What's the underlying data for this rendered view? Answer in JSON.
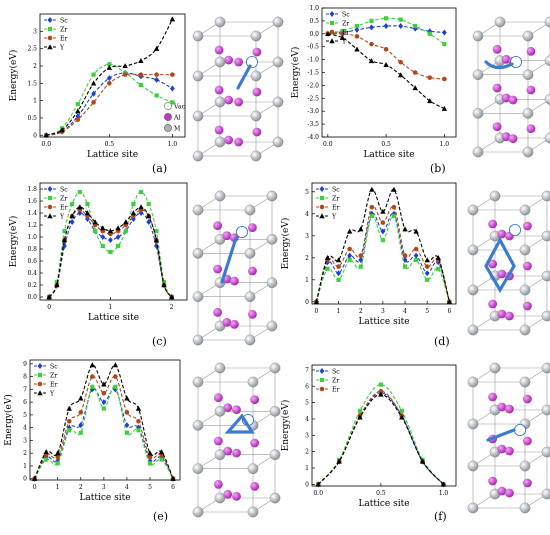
{
  "series_styles": [
    {
      "name": "Sc",
      "color": "#1f3fd8",
      "marker": "diamond"
    },
    {
      "name": "Zr",
      "color": "#3dcf3d",
      "marker": "square"
    },
    {
      "name": "Er",
      "color": "#b4471a",
      "marker": "circle"
    },
    {
      "name": "Y",
      "color": "#000000",
      "marker": "triangle"
    }
  ],
  "atom_legend": [
    {
      "label": "Vac",
      "color": "#ffffff"
    },
    {
      "label": "Al",
      "color": "#c33ac8"
    },
    {
      "label": "M",
      "color": "#aab1b8"
    }
  ],
  "chart_data": [
    {
      "panel": "(a)",
      "type": "line",
      "xlabel": "Lattice site",
      "ylabel": "Energy(eV)",
      "xlim": [
        -0.05,
        1.1
      ],
      "ylim": [
        -0.05,
        3.5
      ],
      "xticks": [
        0.0,
        0.5,
        1.0
      ],
      "xtick_labels": [
        "0.0",
        "0.5",
        "1.0"
      ],
      "yticks": [
        0,
        0.5,
        1,
        1.5,
        2,
        2.5,
        3
      ],
      "ytick_labels": [
        "0",
        "0.5",
        "1",
        "1.5",
        "2",
        "2.5",
        "3"
      ],
      "x": [
        0.0,
        0.125,
        0.25,
        0.375,
        0.5,
        0.625,
        0.75,
        0.875,
        1.0
      ],
      "series": [
        {
          "name": "Sc",
          "values": [
            0.0,
            0.1,
            0.55,
            1.2,
            1.65,
            1.8,
            1.7,
            1.6,
            1.35
          ]
        },
        {
          "name": "Zr",
          "values": [
            0.0,
            0.2,
            0.9,
            1.75,
            2.05,
            1.8,
            1.45,
            1.15,
            0.95
          ]
        },
        {
          "name": "Er",
          "values": [
            0.0,
            0.1,
            0.45,
            0.95,
            1.5,
            1.75,
            1.75,
            1.75,
            1.75
          ]
        },
        {
          "name": "Y",
          "values": [
            0.0,
            0.15,
            0.7,
            1.5,
            1.95,
            2.0,
            2.15,
            2.5,
            3.35
          ]
        }
      ]
    },
    {
      "panel": "(b)",
      "type": "line",
      "xlabel": "Lattice site",
      "ylabel": "Energy(eV)",
      "xlim": [
        -0.05,
        1.1
      ],
      "ylim": [
        -4.0,
        1.0
      ],
      "xticks": [
        0.0,
        0.5,
        1.0
      ],
      "xtick_labels": [
        "0.0",
        "0.5",
        "1.0"
      ],
      "yticks": [
        -4.0,
        -3.5,
        -3.0,
        -2.5,
        -2.0,
        -1.5,
        -1.0,
        -0.5,
        0.0,
        0.5,
        1.0
      ],
      "ytick_labels": [
        "-4.0",
        "-3.5",
        "-3.0",
        "-2.5",
        "-2.0",
        "-1.5",
        "-1.0",
        "-0.5",
        "0.0",
        "0.5",
        "1.0"
      ],
      "x": [
        0.0,
        0.125,
        0.25,
        0.375,
        0.5,
        0.625,
        0.75,
        0.875,
        1.0
      ],
      "series": [
        {
          "name": "Sc",
          "values": [
            0.0,
            0.05,
            0.15,
            0.25,
            0.3,
            0.3,
            0.2,
            0.1,
            0.05
          ]
        },
        {
          "name": "Zr",
          "values": [
            0.0,
            0.1,
            0.3,
            0.5,
            0.6,
            0.55,
            0.3,
            0.0,
            -0.4
          ]
        },
        {
          "name": "Er",
          "values": [
            0.0,
            0.0,
            -0.1,
            -0.4,
            -0.6,
            -1.1,
            -1.5,
            -1.7,
            -1.75
          ]
        },
        {
          "name": "Y",
          "values": [
            0.0,
            -0.15,
            -0.6,
            -1.05,
            -1.2,
            -1.6,
            -2.1,
            -2.6,
            -2.9
          ]
        }
      ]
    },
    {
      "panel": "(c)",
      "type": "line",
      "xlabel": "Lattice site",
      "ylabel": "Energy(eV)",
      "xlim": [
        -0.15,
        2.25
      ],
      "ylim": [
        -0.05,
        1.9
      ],
      "xticks": [
        0,
        1,
        2
      ],
      "xtick_labels": [
        "0",
        "1",
        "2"
      ],
      "yticks": [
        0.0,
        0.2,
        0.4,
        0.6,
        0.8,
        1.0,
        1.2,
        1.4,
        1.6,
        1.8
      ],
      "ytick_labels": [
        "0.0",
        "0.2",
        "0.4",
        "0.6",
        "0.8",
        "1.0",
        "1.2",
        "1.4",
        "1.6",
        "1.8"
      ],
      "x": [
        0.0,
        0.125,
        0.25,
        0.375,
        0.5,
        0.625,
        0.75,
        0.875,
        1.0,
        1.125,
        1.25,
        1.375,
        1.5,
        1.625,
        1.75,
        1.875,
        2.0
      ],
      "series": [
        {
          "name": "Sc",
          "values": [
            0.0,
            0.2,
            0.85,
            1.25,
            1.4,
            1.3,
            1.1,
            1.0,
            0.95,
            1.0,
            1.1,
            1.3,
            1.4,
            1.25,
            0.85,
            0.2,
            0.0
          ]
        },
        {
          "name": "Zr",
          "values": [
            0.0,
            0.25,
            1.1,
            1.55,
            1.75,
            1.55,
            1.1,
            0.85,
            0.75,
            0.85,
            1.1,
            1.55,
            1.75,
            1.55,
            1.1,
            0.25,
            0.0
          ]
        },
        {
          "name": "Er",
          "values": [
            0.0,
            0.2,
            0.95,
            1.35,
            1.45,
            1.35,
            1.2,
            1.1,
            1.05,
            1.1,
            1.2,
            1.35,
            1.45,
            1.35,
            0.95,
            0.2,
            0.0
          ]
        },
        {
          "name": "Y",
          "values": [
            0.0,
            0.2,
            0.95,
            1.35,
            1.5,
            1.4,
            1.25,
            1.15,
            1.1,
            1.15,
            1.25,
            1.4,
            1.5,
            1.35,
            0.95,
            0.2,
            0.0
          ]
        }
      ]
    },
    {
      "panel": "(d)",
      "type": "line",
      "xlabel": "Lattice site",
      "ylabel": "Energy(eV)",
      "xlim": [
        -0.2,
        6.3
      ],
      "ylim": [
        -0.1,
        5.4
      ],
      "xticks": [
        0,
        1,
        2,
        3,
        4,
        5,
        6
      ],
      "xtick_labels": [
        "0",
        "1",
        "2",
        "3",
        "4",
        "5",
        "6"
      ],
      "yticks": [
        0,
        1,
        2,
        3,
        4,
        5
      ],
      "ytick_labels": [
        "0",
        "1",
        "2",
        "3",
        "4",
        "5"
      ],
      "x": [
        0,
        0.5,
        1,
        1.5,
        2,
        2.5,
        3,
        3.5,
        4,
        4.5,
        5,
        5.5,
        6
      ],
      "series": [
        {
          "name": "Sc",
          "values": [
            0.0,
            1.8,
            1.3,
            2.1,
            1.9,
            4.0,
            3.2,
            4.0,
            1.9,
            2.1,
            1.3,
            1.8,
            0.0
          ]
        },
        {
          "name": "Zr",
          "values": [
            0.0,
            1.5,
            1.0,
            1.9,
            1.6,
            3.9,
            2.8,
            3.9,
            1.6,
            1.9,
            1.0,
            1.5,
            0.0
          ]
        },
        {
          "name": "Er",
          "values": [
            0.0,
            1.9,
            1.6,
            2.4,
            2.1,
            4.3,
            3.6,
            4.3,
            2.1,
            2.4,
            1.6,
            1.9,
            0.0
          ]
        },
        {
          "name": "Y",
          "values": [
            0.0,
            2.0,
            1.9,
            3.2,
            3.3,
            5.1,
            4.1,
            5.1,
            3.3,
            3.2,
            1.9,
            2.0,
            0.0
          ]
        }
      ]
    },
    {
      "panel": "(e)",
      "type": "line",
      "xlabel": "Lattice site",
      "ylabel": "Energy(eV)",
      "xlim": [
        -0.2,
        6.3
      ],
      "ylim": [
        -0.1,
        9.3
      ],
      "xticks": [
        0,
        1,
        2,
        3,
        4,
        5,
        6
      ],
      "xtick_labels": [
        "0",
        "1",
        "2",
        "3",
        "4",
        "5",
        "6"
      ],
      "yticks": [
        0,
        1,
        2,
        3,
        4,
        5,
        6,
        7,
        8,
        9
      ],
      "ytick_labels": [
        "0",
        "1",
        "2",
        "3",
        "4",
        "5",
        "6",
        "7",
        "8",
        "9"
      ],
      "x": [
        0,
        0.5,
        1,
        1.5,
        2,
        2.5,
        3,
        3.5,
        4,
        4.5,
        5,
        5.5,
        6
      ],
      "series": [
        {
          "name": "Sc",
          "values": [
            0.0,
            1.7,
            1.4,
            4.0,
            4.2,
            7.0,
            6.0,
            7.0,
            4.2,
            4.0,
            1.4,
            1.7,
            0.0
          ]
        },
        {
          "name": "Zr",
          "values": [
            0.0,
            1.5,
            1.2,
            3.8,
            3.6,
            7.2,
            5.5,
            7.2,
            3.6,
            3.8,
            1.2,
            1.5,
            0.0
          ]
        },
        {
          "name": "Er",
          "values": [
            0.0,
            1.9,
            1.7,
            4.5,
            5.2,
            8.0,
            6.7,
            8.0,
            5.2,
            4.5,
            1.7,
            1.9,
            0.0
          ]
        },
        {
          "name": "Y",
          "values": [
            0.0,
            2.1,
            2.0,
            5.5,
            6.3,
            8.9,
            7.4,
            8.9,
            6.3,
            5.5,
            2.0,
            2.1,
            0.0
          ]
        }
      ]
    },
    {
      "panel": "(f)",
      "type": "line",
      "xlabel": "Lattice site",
      "ylabel": "Energy(eV)",
      "xlim": [
        -0.05,
        1.1
      ],
      "ylim": [
        -0.1,
        7.3
      ],
      "xticks": [
        0.0,
        0.5,
        1.0
      ],
      "xtick_labels": [
        "0.0",
        "0.5",
        "1.0"
      ],
      "yticks": [
        0,
        1,
        2,
        3,
        4,
        5,
        6,
        7
      ],
      "ytick_labels": [
        "0",
        "1",
        "2",
        "3",
        "4",
        "5",
        "6",
        "7"
      ],
      "x": [
        0.0,
        0.167,
        0.333,
        0.5,
        0.667,
        0.833,
        1.0
      ],
      "series": [
        {
          "name": "Sc",
          "values": [
            0.0,
            1.4,
            4.2,
            5.6,
            4.2,
            1.4,
            0.0
          ]
        },
        {
          "name": "Zr",
          "values": [
            0.0,
            1.5,
            4.5,
            6.1,
            4.5,
            1.5,
            0.0
          ]
        },
        {
          "name": "Er",
          "values": [
            0.0,
            1.4,
            4.2,
            5.7,
            4.2,
            1.4,
            0.0
          ]
        },
        {
          "name": "Y",
          "values": [
            0.0,
            1.4,
            4.1,
            5.5,
            4.1,
            1.4,
            0.0
          ]
        }
      ]
    }
  ]
}
